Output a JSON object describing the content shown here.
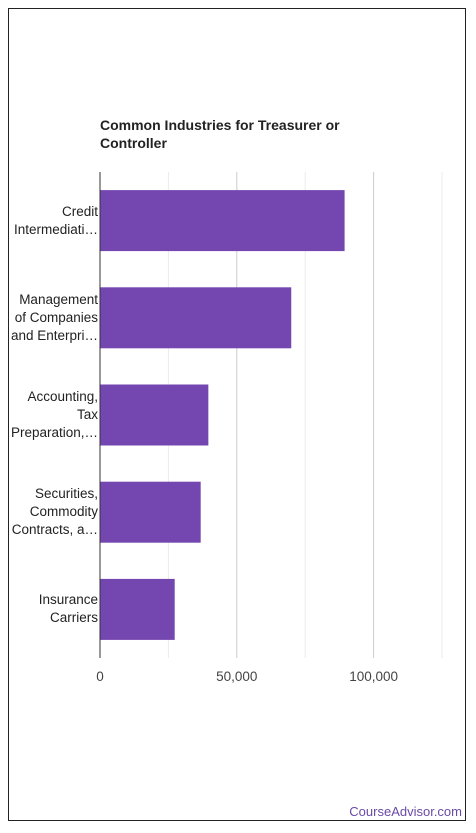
{
  "chart_data": {
    "type": "bar",
    "orientation": "horizontal",
    "title": "Common Industries for Treasurer or Controller",
    "categories": [
      [
        "Credit",
        "Intermediati…"
      ],
      [
        "Management",
        "of Companies",
        "and Enterpri…"
      ],
      [
        "Accounting,",
        "Tax",
        "Preparation,…"
      ],
      [
        "Securities,",
        "Commodity",
        "Contracts, a…"
      ],
      [
        "Insurance",
        "Carriers"
      ]
    ],
    "values": [
      89400,
      69900,
      39600,
      36800,
      27300
    ],
    "xlim": [
      0,
      125000
    ],
    "x_ticks": [
      0,
      50000,
      100000
    ],
    "x_tick_labels": [
      "0",
      "50,000",
      "100,000"
    ],
    "grid": true,
    "bar_color": "#7446b0",
    "grid_color": "#cccccc",
    "xlabel": "",
    "ylabel": ""
  },
  "footer": {
    "brand": "CourseAdvisor.com"
  }
}
